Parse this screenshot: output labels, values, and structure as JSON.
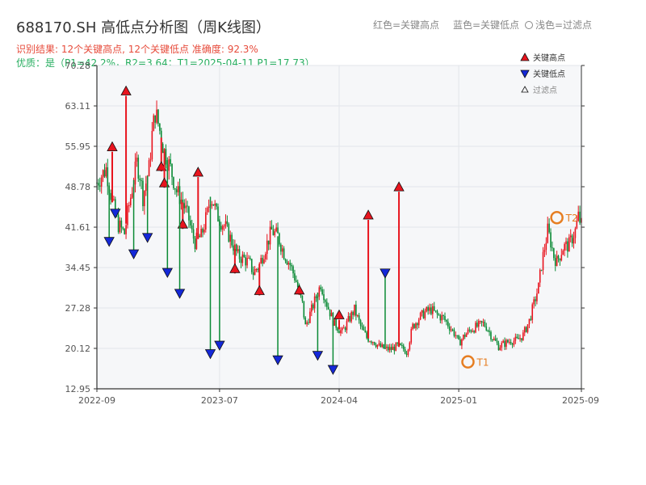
{
  "header": {
    "title": "688170.SH 高低点分析图（周K线图）",
    "result_line": "识别结果: 12个关键高点, 12个关键低点  准确度: 92.3%",
    "quality_line": "优质：是（P1=42.2%，R2=3.64；T1=2025-04-11 P1=17.73）",
    "note_red": "红色=关键高点",
    "note_blue": "蓝色=关键低点",
    "note_light": "浅色=过滤点"
  },
  "legend": {
    "high": "关键高点",
    "low": "关键低点",
    "filtered": "过滤点"
  },
  "colors": {
    "up": "#e8141e",
    "down": "#0a8a35",
    "high_marker": "#e8141e",
    "low_marker": "#1428d8",
    "tmark": "#e67e22"
  },
  "chart_data": {
    "type": "candlestick",
    "title": "688170.SH 高低点分析图（周K线图）",
    "ylim": [
      12.95,
      70.28
    ],
    "yticks": [
      "70.28",
      "63.11",
      "55.95",
      "48.78",
      "41.61",
      "34.45",
      "27.28",
      "20.12",
      "12.95"
    ],
    "xticks": [
      "2022-09",
      "2023-07",
      "2024-04",
      "2025-01",
      "2025-09"
    ],
    "x_range_weeks": [
      0,
      158
    ],
    "xtick_weeks": [
      0,
      40,
      79,
      118,
      158
    ],
    "anchors": [
      [
        0,
        49.5
      ],
      [
        3,
        52.0
      ],
      [
        5,
        46.0
      ],
      [
        7,
        42.0
      ],
      [
        9,
        40.5
      ],
      [
        10,
        44.0
      ],
      [
        12,
        50.0
      ],
      [
        13,
        53.0
      ],
      [
        14,
        51.0
      ],
      [
        15,
        47.0
      ],
      [
        17,
        52.0
      ],
      [
        18,
        58.0
      ],
      [
        19,
        62.0
      ],
      [
        20,
        60.0
      ],
      [
        22,
        55.0
      ],
      [
        24,
        52.0
      ],
      [
        26,
        48.0
      ],
      [
        28,
        46.0
      ],
      [
        30,
        43.0
      ],
      [
        31,
        40.5
      ],
      [
        32,
        39.0
      ],
      [
        34,
        40.0
      ],
      [
        36,
        44.0
      ],
      [
        37,
        47.0
      ],
      [
        38,
        46.0
      ],
      [
        39,
        44.0
      ],
      [
        40,
        43.0
      ],
      [
        42,
        41.5
      ],
      [
        44,
        39.0
      ],
      [
        46,
        36.5
      ],
      [
        48,
        36.0
      ],
      [
        50,
        35.0
      ],
      [
        51,
        33.5
      ],
      [
        53,
        35.0
      ],
      [
        55,
        38.0
      ],
      [
        57,
        41.0
      ],
      [
        59,
        40.0
      ],
      [
        61,
        37.0
      ],
      [
        63,
        35.0
      ],
      [
        65,
        32.0
      ],
      [
        67,
        28.0
      ],
      [
        68,
        24.0
      ],
      [
        70,
        27.0
      ],
      [
        72,
        30.0
      ],
      [
        73,
        31.5
      ],
      [
        75,
        28.0
      ],
      [
        77,
        25.0
      ],
      [
        79,
        23.5
      ],
      [
        80,
        23.0
      ],
      [
        82,
        25.0
      ],
      [
        84,
        27.0
      ],
      [
        86,
        24.0
      ],
      [
        88,
        22.0
      ],
      [
        90,
        21.5
      ],
      [
        92,
        20.5
      ],
      [
        94,
        20.0
      ],
      [
        96,
        20.0
      ],
      [
        98,
        20.5
      ],
      [
        100,
        20.0
      ],
      [
        101,
        19.5
      ],
      [
        103,
        24.0
      ],
      [
        105,
        25.5
      ],
      [
        107,
        26.5
      ],
      [
        109,
        27.0
      ],
      [
        111,
        26.0
      ],
      [
        113,
        25.5
      ],
      [
        115,
        24.0
      ],
      [
        117,
        22.5
      ],
      [
        118,
        21.0
      ],
      [
        120,
        22.5
      ],
      [
        122,
        23.5
      ],
      [
        124,
        24.0
      ],
      [
        126,
        24.5
      ],
      [
        127,
        24.0
      ],
      [
        129,
        22.0
      ],
      [
        131,
        20.5
      ],
      [
        133,
        21.0
      ],
      [
        135,
        21.5
      ],
      [
        137,
        21.5
      ],
      [
        139,
        22.5
      ],
      [
        141,
        25.0
      ],
      [
        143,
        29.0
      ],
      [
        144,
        31.0
      ],
      [
        145,
        35.0
      ],
      [
        146,
        38.0
      ],
      [
        147,
        41.0
      ],
      [
        148,
        39.0
      ],
      [
        149,
        36.5
      ],
      [
        150,
        35.5
      ],
      [
        152,
        38.0
      ],
      [
        154,
        38.5
      ],
      [
        156,
        41.0
      ],
      [
        157,
        43.5
      ],
      [
        158,
        42.0
      ]
    ],
    "key_highs": [
      {
        "week": 5,
        "price": 55.0
      },
      {
        "week": 9.5,
        "price": 64.9
      },
      {
        "week": 21,
        "price": 51.5
      },
      {
        "week": 22,
        "price": 48.6
      },
      {
        "week": 28,
        "price": 41.3
      },
      {
        "week": 33,
        "price": 50.5
      },
      {
        "week": 45,
        "price": 33.4
      },
      {
        "week": 53,
        "price": 29.5
      },
      {
        "week": 66,
        "price": 29.6
      },
      {
        "week": 79,
        "price": 25.2
      },
      {
        "week": 88.5,
        "price": 42.9
      },
      {
        "week": 98.5,
        "price": 47.9
      }
    ],
    "key_lows": [
      {
        "week": 4,
        "price": 39.8
      },
      {
        "week": 6,
        "price": 44.8
      },
      {
        "week": 12,
        "price": 37.6
      },
      {
        "week": 16.5,
        "price": 40.5
      },
      {
        "week": 23,
        "price": 34.3
      },
      {
        "week": 27,
        "price": 30.6
      },
      {
        "week": 37,
        "price": 19.9
      },
      {
        "week": 40,
        "price": 21.4
      },
      {
        "week": 59,
        "price": 18.8
      },
      {
        "week": 72,
        "price": 19.6
      },
      {
        "week": 77,
        "price": 17.1
      },
      {
        "week": 94,
        "price": 34.2
      }
    ],
    "special_marks": [
      {
        "label": "T1",
        "week": 121,
        "price": 17.73
      },
      {
        "label": "T2",
        "week": 150,
        "price": 43.3
      }
    ],
    "grid": true,
    "legend_position": "top-right"
  }
}
